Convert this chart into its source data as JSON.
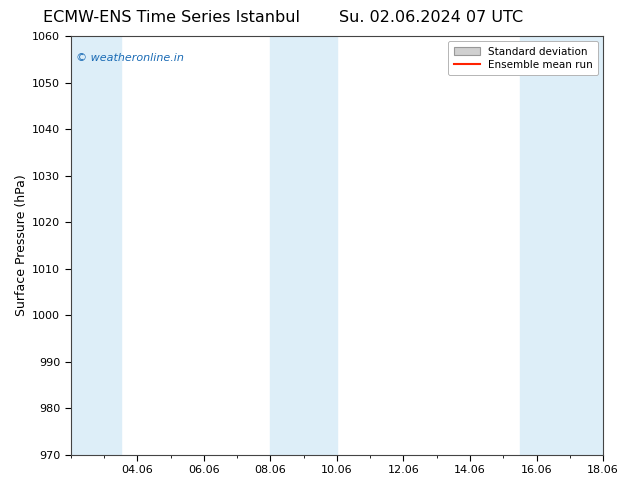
{
  "title": "ECMW-ENS Time Series Istanbul     Su. 02.06.2024 07 UTC",
  "title_left": "ECMW-ENS Time Series Istanbul",
  "title_right": "Su. 02.06.2024 07 UTC",
  "ylabel": "Surface Pressure (hPa)",
  "ylim": [
    970,
    1060
  ],
  "yticks": [
    970,
    980,
    990,
    1000,
    1010,
    1020,
    1030,
    1040,
    1050,
    1060
  ],
  "xlim": [
    0,
    16
  ],
  "xtick_labels": [
    "04.06",
    "06.06",
    "08.06",
    "10.06",
    "12.06",
    "14.06",
    "16.06",
    "18.06"
  ],
  "xtick_positions": [
    2,
    4,
    6,
    8,
    10,
    12,
    14,
    16
  ],
  "shaded_bands": [
    {
      "x_start": 0.0,
      "x_end": 1.5,
      "color": "#ddeef8"
    },
    {
      "x_start": 6.0,
      "x_end": 8.0,
      "color": "#ddeef8"
    },
    {
      "x_start": 13.5,
      "x_end": 16.0,
      "color": "#ddeef8"
    }
  ],
  "watermark_text": "© weatheronline.in",
  "watermark_color": "#1a6bb5",
  "legend_std_color": "#d0d0d0",
  "legend_mean_color": "#ff2200",
  "background_color": "#ffffff",
  "plot_bg_color": "#ffffff",
  "title_fontsize": 11.5,
  "tick_fontsize": 8,
  "ylabel_fontsize": 9,
  "legend_fontsize": 7.5
}
